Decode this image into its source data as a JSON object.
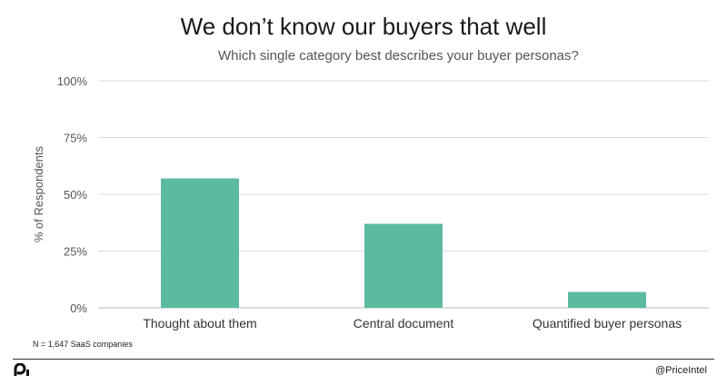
{
  "chart_data": {
    "type": "bar",
    "title": "We don’t know our buyers that well",
    "subtitle": "Which single category best describes your buyer personas?",
    "ylabel": "% of Respondents",
    "xlabel": "",
    "categories": [
      "Thought about them",
      "Central document",
      "Quantified buyer personas"
    ],
    "values": [
      57,
      37,
      7
    ],
    "ylim": [
      0,
      100
    ],
    "yticks": [
      0,
      25,
      50,
      75,
      100
    ],
    "ytick_labels": [
      "0%",
      "25%",
      "50%",
      "75%",
      "100%"
    ],
    "grid": true,
    "legend": "none",
    "bar_color": "#5cbaa0",
    "grid_color": "#dddddd"
  },
  "footnote": "N = 1,647  SaaS companies",
  "footer": {
    "handle": "@PriceIntel",
    "logo_icon": "priceintel-logo-icon"
  }
}
